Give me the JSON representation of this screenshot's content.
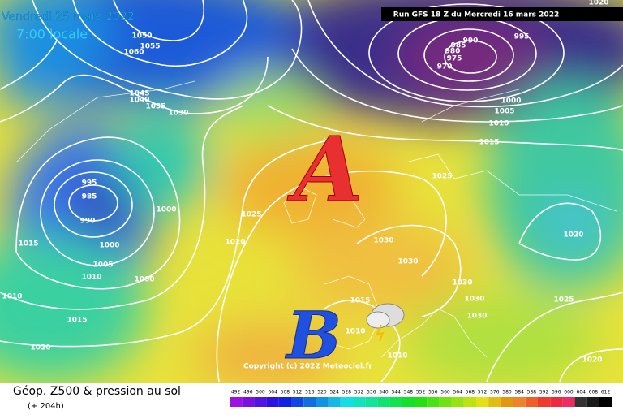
{
  "header": {
    "date": "Vendredi 25 mars 2022",
    "time": "7:00 locale",
    "run": "Run GFS 18 Z du Mercredi 16 mars 2022"
  },
  "map": {
    "high_marker": "A",
    "low_marker": "B",
    "copyright": "Copyright (c) 2022 Meteociel.fr",
    "isobar_labels": [
      "1050",
      "1055",
      "1060",
      "1045",
      "1040",
      "1035",
      "1030",
      "995",
      "985",
      "990",
      "1000",
      "1000",
      "1005",
      "1010",
      "1000",
      "1015",
      "1010",
      "1015",
      "1020",
      "1025",
      "1020",
      "1030",
      "1030",
      "1025",
      "1030",
      "1030",
      "1030",
      "1015",
      "1010",
      "1010",
      "1020",
      "1025",
      "1020",
      "995",
      "990",
      "985",
      "980",
      "975",
      "970",
      "1000",
      "1005",
      "1010",
      "1015",
      "1020"
    ]
  },
  "footer": {
    "title": "Géop. Z500 & pression au sol",
    "lead": "(+ 204h)",
    "colorbar_labels": [
      "492",
      "496",
      "500",
      "504",
      "508",
      "512",
      "516",
      "520",
      "524",
      "528",
      "532",
      "536",
      "540",
      "544",
      "548",
      "552",
      "556",
      "560",
      "564",
      "568",
      "572",
      "576",
      "580",
      "584",
      "588",
      "592",
      "596",
      "600",
      "604",
      "608",
      "612"
    ]
  }
}
